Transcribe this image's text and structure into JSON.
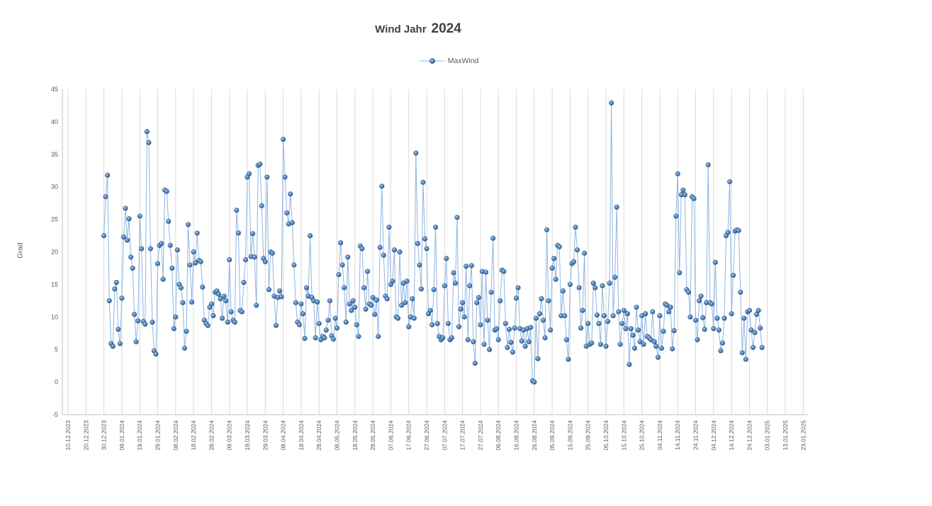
{
  "title": {
    "prefix": "Wind Jahr",
    "year": "2024"
  },
  "legend": {
    "series_label": "MaxWind"
  },
  "colors": {
    "line": "#8eb4e3",
    "marker_fill": "#4e81bd",
    "marker_stroke": "#2c5a88",
    "grid": "#d9d9d9",
    "axis": "#bfbfbf",
    "text": "#595959",
    "title": "#404040"
  },
  "chart_data": {
    "type": "line",
    "title": "Wind Jahr 2024",
    "ylabel": "Grad",
    "ylim": [
      -5,
      45
    ],
    "y_ticks": [
      45,
      40,
      35,
      30,
      25,
      20,
      15,
      10,
      5,
      0,
      -5
    ],
    "grid": "vertical-only",
    "legend_position": "top-center",
    "days_per_tick": 10,
    "x_tick_labels": [
      "10.12.2023",
      "20.12.2023",
      "30.12.2023",
      "09.01.2024",
      "19.01.2024",
      "29.01.2024",
      "08.02.2024",
      "18.02.2024",
      "28.02.2024",
      "09.03.2024",
      "19.03.2024",
      "29.03.2024",
      "08.04.2024",
      "18.04.2024",
      "28.04.2024",
      "08.05.2024",
      "18.05.2024",
      "28.05.2024",
      "07.06.2024",
      "17.06.2024",
      "27.06.2024",
      "07.07.2024",
      "17.07.2024",
      "27.07.2024",
      "06.08.2024",
      "16.08.2024",
      "26.08.2024",
      "05.09.2024",
      "15.09.2024",
      "25.09.2024",
      "05.10.2024",
      "15.10.2024",
      "25.10.2024",
      "04.11.2024",
      "14.11.2024",
      "24.11.2024",
      "04.12.2024",
      "14.12.2024",
      "24.12.2024",
      "03.01.2025",
      "13.01.2025",
      "23.01.2025"
    ],
    "series": [
      {
        "name": "MaxWind",
        "start_offset_days": 20,
        "interval_days": 1,
        "values": [
          22.5,
          28.5,
          31.8,
          12.5,
          5.9,
          5.5,
          14.3,
          15.3,
          8.1,
          5.9,
          12.9,
          22.3,
          26.7,
          21.8,
          25.1,
          19.2,
          17.5,
          10.4,
          6.2,
          9.4,
          25.5,
          20.5,
          9.3,
          8.9,
          38.5,
          36.8,
          20.5,
          9.2,
          4.8,
          4.3,
          18.2,
          21.0,
          21.3,
          15.8,
          29.5,
          29.3,
          24.7,
          21.0,
          17.5,
          8.2,
          10.0,
          20.3,
          15.0,
          14.5,
          12.2,
          5.2,
          7.8,
          24.2,
          18.0,
          12.3,
          20.0,
          18.3,
          22.9,
          18.7,
          18.5,
          14.6,
          9.5,
          9.0,
          8.7,
          11.5,
          12.0,
          10.2,
          13.8,
          14.0,
          13.5,
          12.8,
          9.8,
          13.2,
          12.5,
          9.2,
          18.8,
          10.8,
          9.5,
          9.2,
          26.4,
          22.9,
          11.0,
          10.8,
          15.3,
          18.8,
          31.5,
          32.0,
          19.3,
          22.8,
          19.2,
          11.8,
          33.3,
          33.5,
          27.1,
          19.0,
          18.5,
          31.5,
          14.2,
          20.0,
          19.8,
          13.2,
          8.7,
          13.0,
          14.0,
          13.1,
          37.3,
          31.5,
          26.0,
          24.3,
          28.9,
          24.5,
          18.0,
          12.2,
          9.2,
          8.8,
          12.0,
          10.5,
          6.7,
          14.5,
          13.2,
          22.5,
          13.0,
          12.5,
          6.8,
          12.3,
          9.0,
          6.5,
          7.0,
          6.8,
          8.0,
          9.5,
          12.5,
          7.1,
          6.6,
          9.8,
          8.3,
          16.5,
          21.4,
          18.0,
          14.5,
          9.2,
          19.2,
          12.0,
          11.0,
          12.5,
          11.5,
          8.8,
          7.0,
          20.9,
          20.5,
          14.5,
          11.2,
          17.0,
          12.0,
          11.8,
          13.0,
          10.4,
          12.6,
          7.0,
          20.7,
          30.1,
          19.5,
          13.2,
          12.8,
          23.8,
          15.0,
          15.5,
          20.3,
          10.0,
          9.8,
          20.0,
          11.8,
          15.2,
          12.2,
          15.5,
          8.5,
          10.0,
          12.8,
          9.8,
          35.2,
          21.3,
          18.0,
          14.3,
          30.7,
          22.0,
          20.5,
          10.5,
          11.0,
          8.8,
          14.2,
          23.8,
          9.0,
          7.0,
          6.5,
          6.8,
          14.8,
          19.0,
          9.0,
          6.5,
          6.8,
          16.8,
          15.2,
          25.3,
          8.5,
          11.2,
          12.2,
          10.0,
          17.8,
          6.5,
          14.8,
          17.9,
          6.2,
          2.9,
          12.2,
          13.0,
          8.8,
          17.0,
          5.8,
          16.9,
          9.5,
          5.0,
          13.8,
          22.1,
          8.0,
          8.2,
          6.5,
          12.5,
          17.2,
          17.0,
          9.0,
          5.3,
          8.1,
          6.1,
          4.6,
          8.3,
          12.9,
          14.5,
          8.2,
          6.3,
          8.0,
          5.5,
          8.2,
          6.2,
          8.4,
          0.2,
          0.0,
          9.8,
          3.6,
          10.5,
          12.8,
          9.5,
          6.8,
          23.4,
          12.5,
          8.0,
          17.5,
          19.0,
          15.8,
          21.0,
          20.8,
          10.2,
          14.0,
          10.2,
          6.5,
          3.5,
          15.0,
          18.2,
          18.5,
          23.8,
          20.3,
          14.5,
          8.3,
          11.0,
          19.8,
          5.5,
          9.0,
          5.8,
          6.0,
          15.2,
          14.5,
          10.3,
          9.0,
          5.8,
          14.8,
          10.2,
          5.5,
          9.3,
          15.2,
          42.9,
          10.2,
          16.1,
          26.9,
          10.8,
          5.8,
          9.0,
          11.0,
          8.2,
          10.5,
          2.7,
          8.2,
          7.2,
          5.2,
          11.5,
          8.0,
          6.2,
          10.2,
          5.8,
          10.5,
          7.0,
          6.8,
          6.5,
          10.8,
          6.2,
          5.5,
          3.8,
          10.2,
          5.2,
          7.8,
          12.0,
          11.8,
          10.8,
          11.5,
          5.1,
          7.9,
          25.5,
          32.0,
          16.8,
          28.8,
          29.5,
          28.8,
          14.2,
          13.8,
          10.0,
          28.5,
          28.2,
          9.5,
          6.5,
          12.5,
          13.2,
          9.9,
          8.1,
          12.2,
          33.4,
          12.2,
          12.0,
          8.2,
          18.4,
          9.8,
          8.0,
          4.8,
          6.0,
          9.8,
          22.5,
          23.0,
          30.8,
          10.5,
          16.4,
          23.2,
          23.4,
          23.3,
          13.8,
          4.5,
          9.8,
          3.5,
          10.8,
          11.0,
          8.0,
          5.3,
          7.6,
          10.4,
          11.0,
          8.3,
          5.3
        ]
      }
    ]
  }
}
